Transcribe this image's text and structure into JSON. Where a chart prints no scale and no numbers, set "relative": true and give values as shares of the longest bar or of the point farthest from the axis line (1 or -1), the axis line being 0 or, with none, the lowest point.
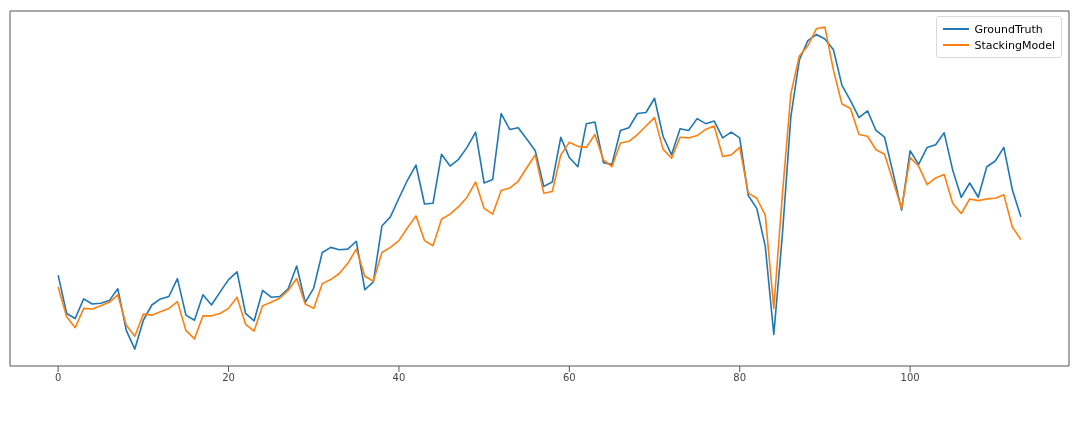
{
  "chart_data": {
    "type": "line",
    "relative": true,
    "x": [
      0,
      1,
      2,
      3,
      4,
      5,
      6,
      7,
      8,
      9,
      10,
      11,
      12,
      13,
      14,
      15,
      16,
      17,
      18,
      19,
      20,
      21,
      22,
      23,
      24,
      25,
      26,
      27,
      28,
      29,
      30,
      31,
      32,
      33,
      34,
      35,
      36,
      37,
      38,
      39,
      40,
      41,
      42,
      43,
      44,
      45,
      46,
      47,
      48,
      49,
      50,
      51,
      52,
      53,
      54,
      55,
      56,
      57,
      58,
      59,
      60,
      61,
      62,
      63,
      64,
      65,
      66,
      67,
      68,
      69,
      70,
      71,
      72,
      73,
      74,
      75,
      76,
      77,
      78,
      79,
      80,
      81,
      82,
      83,
      84,
      85,
      86,
      87,
      88,
      89,
      90,
      91,
      92,
      93,
      94,
      95,
      96,
      97,
      98,
      99,
      100,
      101,
      102,
      103,
      104,
      105,
      106,
      107,
      108,
      109,
      110,
      111,
      112,
      113
    ],
    "xlim": [
      -5.65,
      118.65
    ],
    "xticks": [
      0,
      20,
      40,
      60,
      80,
      100
    ],
    "legend": "top right",
    "series": [
      {
        "name": "GroundTruth",
        "color": "#1f77b4",
        "values": [
          0.268,
          0.155,
          0.14,
          0.198,
          0.183,
          0.185,
          0.193,
          0.228,
          0.105,
          0.05,
          0.135,
          0.18,
          0.198,
          0.205,
          0.258,
          0.15,
          0.135,
          0.21,
          0.18,
          0.218,
          0.255,
          0.278,
          0.155,
          0.133,
          0.223,
          0.203,
          0.205,
          0.228,
          0.295,
          0.188,
          0.23,
          0.335,
          0.35,
          0.343,
          0.345,
          0.368,
          0.225,
          0.248,
          0.413,
          0.44,
          0.495,
          0.548,
          0.593,
          0.478,
          0.48,
          0.625,
          0.59,
          0.61,
          0.645,
          0.69,
          0.54,
          0.55,
          0.745,
          0.698,
          0.703,
          0.67,
          0.635,
          0.53,
          0.543,
          0.675,
          0.615,
          0.588,
          0.715,
          0.72,
          0.6,
          0.595,
          0.695,
          0.703,
          0.745,
          0.748,
          0.79,
          0.678,
          0.623,
          0.7,
          0.695,
          0.73,
          0.715,
          0.723,
          0.673,
          0.69,
          0.673,
          0.503,
          0.465,
          0.353,
          0.093,
          0.385,
          0.735,
          0.903,
          0.96,
          0.978,
          0.965,
          0.933,
          0.828,
          0.783,
          0.733,
          0.753,
          0.695,
          0.675,
          0.57,
          0.46,
          0.635,
          0.595,
          0.645,
          0.653,
          0.688,
          0.578,
          0.498,
          0.54,
          0.498,
          0.588,
          0.605,
          0.645,
          0.52,
          0.44
        ]
      },
      {
        "name": "StackingModel",
        "color": "#ff7f0e",
        "values": [
          0.233,
          0.145,
          0.113,
          0.17,
          0.168,
          0.178,
          0.188,
          0.21,
          0.12,
          0.088,
          0.153,
          0.15,
          0.16,
          0.17,
          0.19,
          0.105,
          0.08,
          0.148,
          0.148,
          0.155,
          0.17,
          0.203,
          0.123,
          0.103,
          0.178,
          0.188,
          0.2,
          0.223,
          0.258,
          0.183,
          0.17,
          0.243,
          0.255,
          0.273,
          0.303,
          0.345,
          0.265,
          0.25,
          0.335,
          0.35,
          0.37,
          0.408,
          0.443,
          0.37,
          0.355,
          0.433,
          0.448,
          0.47,
          0.498,
          0.543,
          0.465,
          0.448,
          0.518,
          0.525,
          0.545,
          0.585,
          0.623,
          0.51,
          0.515,
          0.623,
          0.66,
          0.648,
          0.645,
          0.683,
          0.608,
          0.588,
          0.658,
          0.663,
          0.683,
          0.708,
          0.733,
          0.64,
          0.613,
          0.675,
          0.673,
          0.68,
          0.698,
          0.708,
          0.618,
          0.623,
          0.645,
          0.51,
          0.495,
          0.445,
          0.17,
          0.503,
          0.803,
          0.915,
          0.945,
          0.995,
          1,
          0.873,
          0.773,
          0.76,
          0.683,
          0.678,
          0.638,
          0.625,
          0.545,
          0.465,
          0.615,
          0.59,
          0.535,
          0.555,
          0.565,
          0.48,
          0.45,
          0.493,
          0.488,
          0.493,
          0.495,
          0.505,
          0.41,
          0.373
        ]
      }
    ]
  }
}
